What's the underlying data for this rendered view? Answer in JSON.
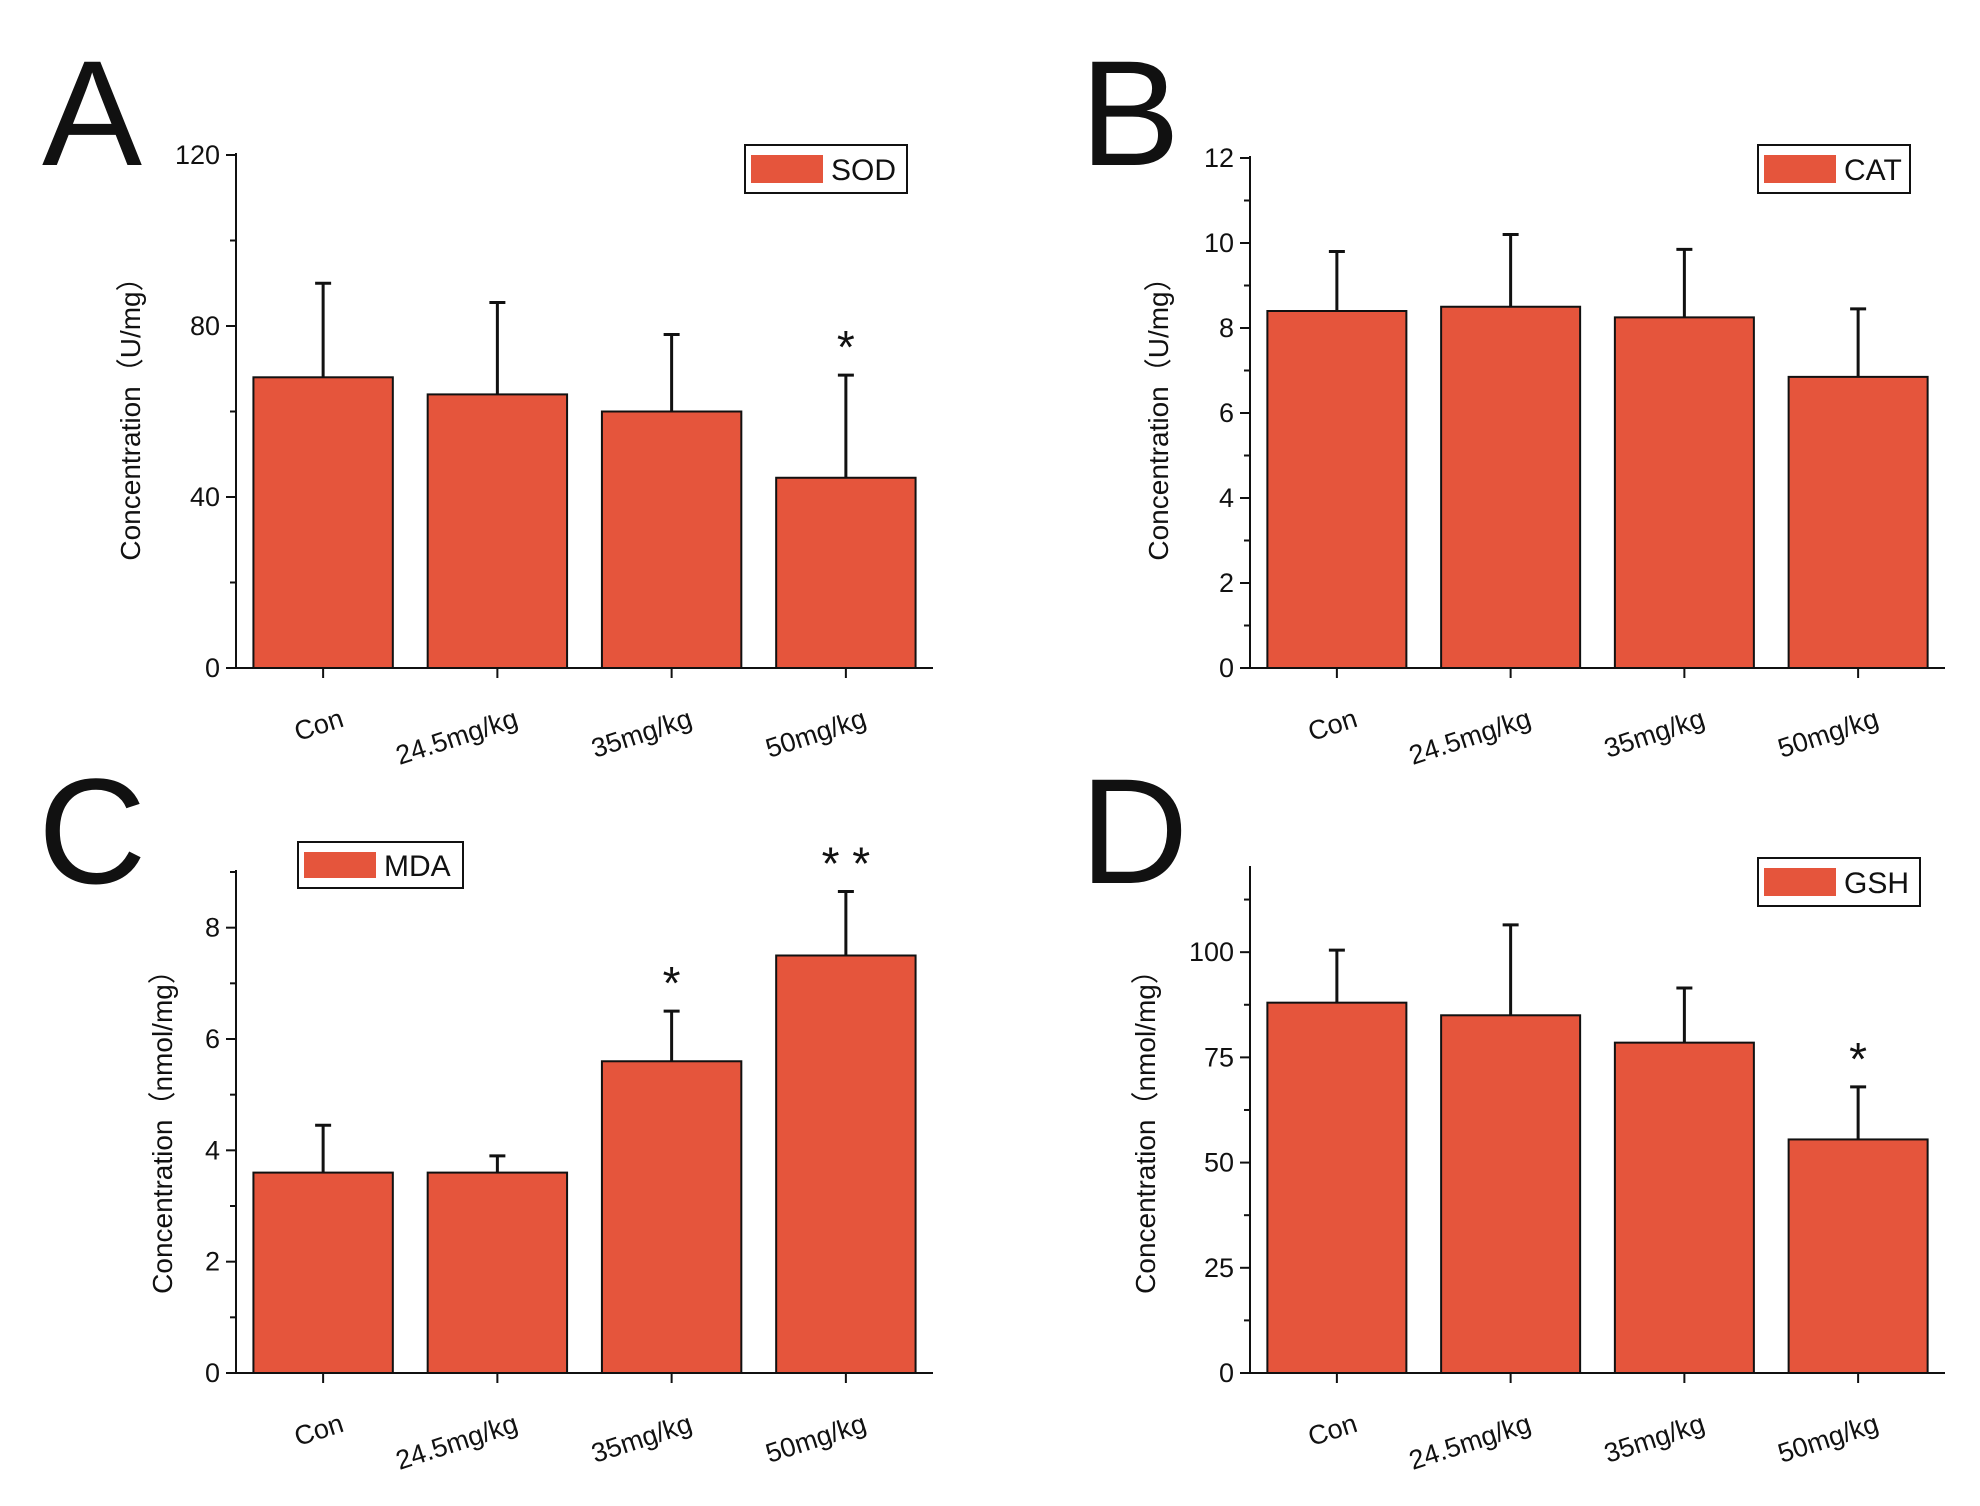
{
  "colors": {
    "bar": "#e5553c",
    "axis": "#111111",
    "background": "#ffffff"
  },
  "chart_data": [
    {
      "panel_label": "A",
      "type": "bar",
      "categories": [
        "Con",
        "24.5mg/kg",
        "35mg/kg",
        "50mg/kg"
      ],
      "series": [
        {
          "name": "SOD",
          "values": [
            68,
            64,
            60,
            44.5
          ],
          "errors": [
            22,
            21.5,
            18,
            24
          ]
        }
      ],
      "ylabel": "Concentration（U/mg）",
      "ylim": [
        0,
        120
      ],
      "yticks": [
        0,
        40,
        80,
        120
      ],
      "annotations": [
        "",
        "",
        "",
        "*"
      ],
      "legend": "top-right",
      "grid": false
    },
    {
      "panel_label": "B",
      "type": "bar",
      "categories": [
        "Con",
        "24.5mg/kg",
        "35mg/kg",
        "50mg/kg"
      ],
      "series": [
        {
          "name": "CAT",
          "values": [
            8.4,
            8.5,
            8.25,
            6.85
          ],
          "errors": [
            1.4,
            1.7,
            1.6,
            1.6
          ]
        }
      ],
      "ylabel": "Concentration（U/mg）",
      "ylim": [
        0,
        12
      ],
      "yticks": [
        0,
        2,
        4,
        6,
        8,
        10,
        12
      ],
      "annotations": [
        "",
        "",
        "",
        ""
      ],
      "legend": "top-right",
      "grid": false
    },
    {
      "panel_label": "C",
      "type": "bar",
      "categories": [
        "Con",
        "24.5mg/kg",
        "35mg/kg",
        "50mg/kg"
      ],
      "series": [
        {
          "name": "MDA",
          "values": [
            3.6,
            3.6,
            5.6,
            7.5
          ],
          "errors": [
            0.85,
            0.3,
            0.9,
            1.15
          ]
        }
      ],
      "ylabel": "Concentration（nmol/mg）",
      "ylim": [
        0,
        9
      ],
      "yticks": [
        0,
        2,
        4,
        6,
        8
      ],
      "annotations": [
        "",
        "",
        "*",
        "* *"
      ],
      "legend": "top-left",
      "grid": false
    },
    {
      "panel_label": "D",
      "type": "bar",
      "categories": [
        "Con",
        "24.5mg/kg",
        "35mg/kg",
        "50mg/kg"
      ],
      "series": [
        {
          "name": "GSH",
          "values": [
            88,
            85,
            78.5,
            55.5
          ],
          "errors": [
            12.5,
            21.5,
            13,
            12.5
          ]
        }
      ],
      "ylabel": "Concentration（nmol/mg）",
      "ylim": [
        0,
        120
      ],
      "yticks": [
        0,
        25,
        50,
        75,
        100
      ],
      "annotations": [
        "",
        "",
        "",
        "*"
      ],
      "legend": "top-right",
      "grid": false
    }
  ]
}
